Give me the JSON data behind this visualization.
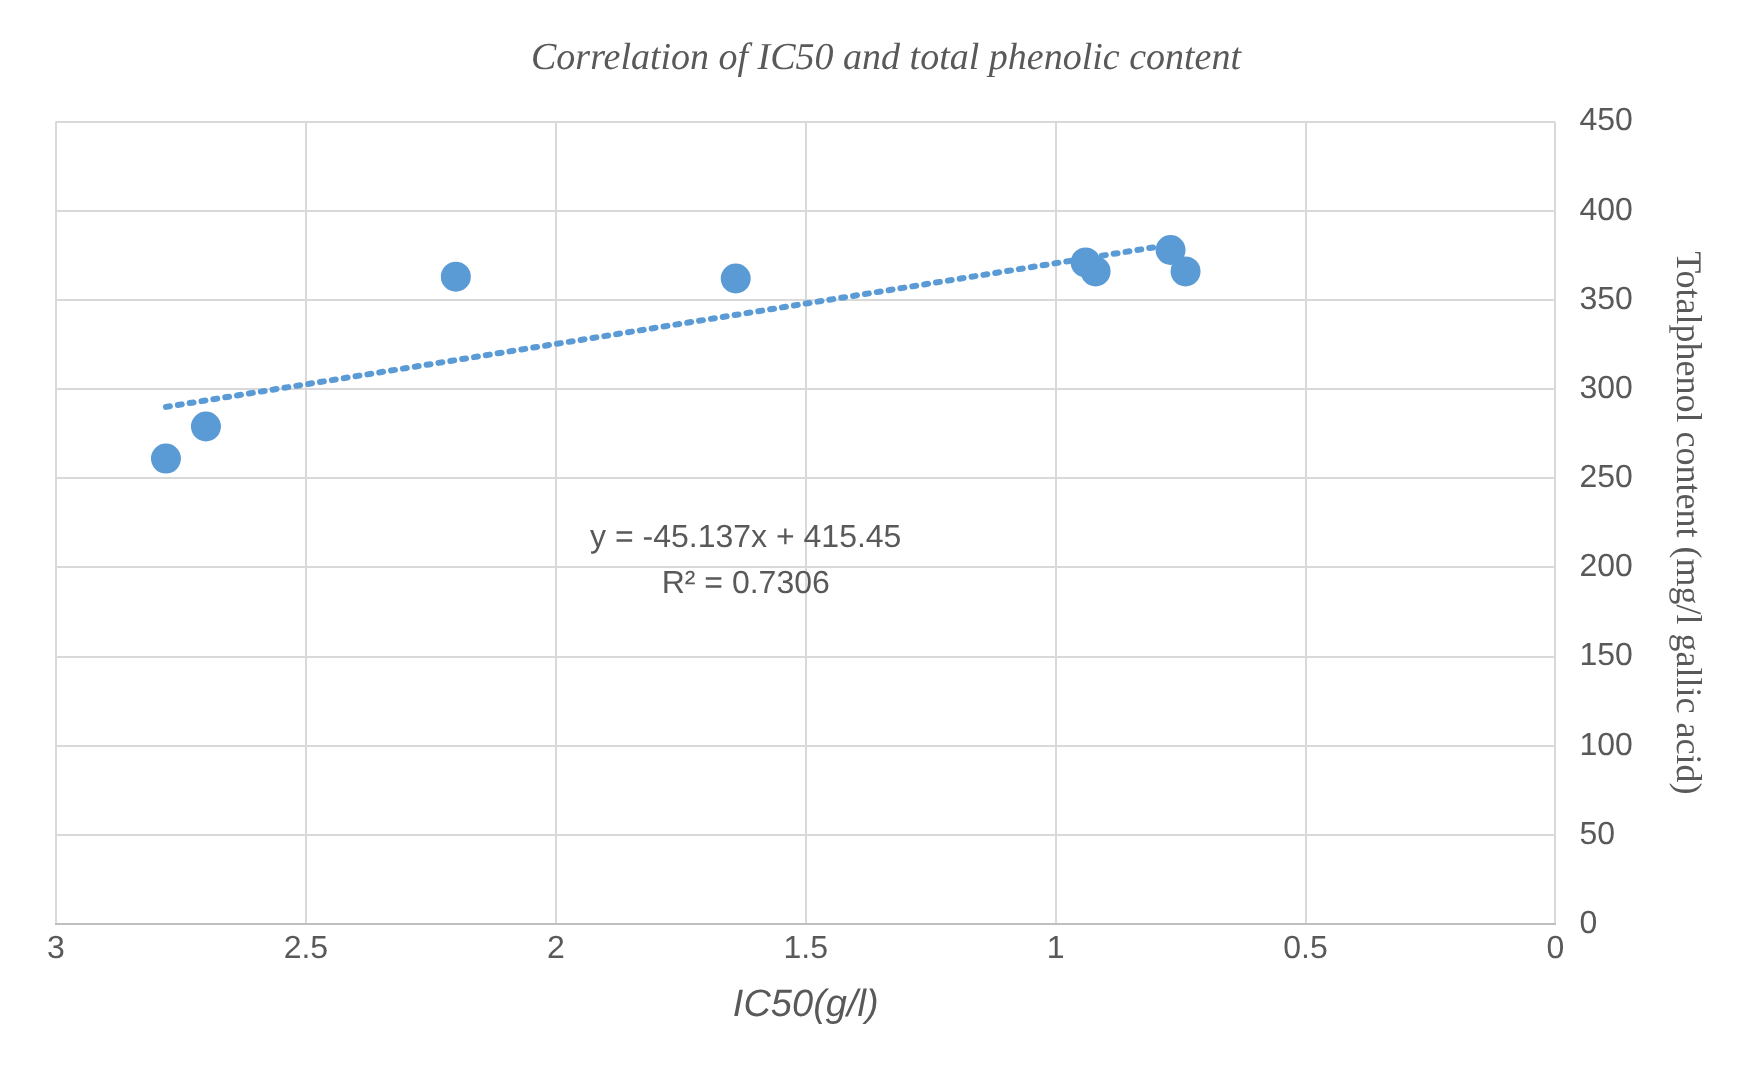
{
  "chart_data": {
    "type": "scatter",
    "title": "Correlation of IC50 and total phenolic content",
    "xlabel": "IC50(g/l)",
    "ylabel": "Totalphenol content (mg/l gallic acid)",
    "xlim": [
      3,
      0
    ],
    "xticks": [
      0,
      0.5,
      1,
      1.5,
      2,
      2.5,
      3
    ],
    "ylim": [
      0,
      450
    ],
    "yticks": [
      0,
      50,
      100,
      150,
      200,
      250,
      300,
      350,
      400,
      450
    ],
    "grid": true,
    "series": [
      {
        "marker": "circle",
        "color": "#5b9bd5",
        "x": [
          2.78,
          2.7,
          2.2,
          1.64,
          0.94,
          0.92,
          0.77,
          0.74
        ],
        "values": [
          261,
          279,
          363,
          362,
          371,
          366,
          378,
          366
        ]
      },
      {
        "type": "line",
        "marker": "none",
        "color": "#5b9bd5",
        "line_style": "dotted",
        "x": [
          2.78,
          0.77
        ],
        "values": [
          290,
          381
        ]
      }
    ],
    "annotations": [
      "y = -45.137x + 415.45",
      "R² = 0.7306"
    ]
  }
}
